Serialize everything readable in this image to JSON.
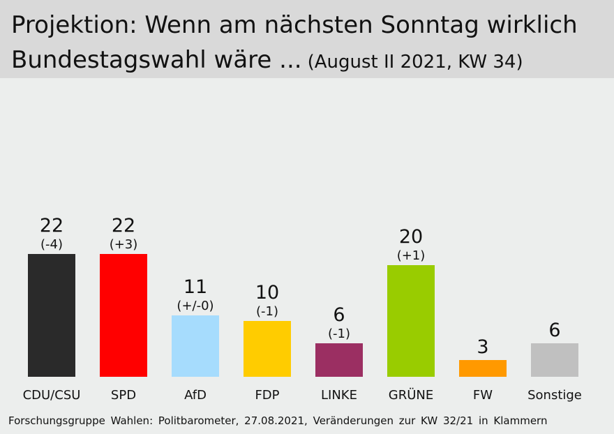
{
  "header": {
    "title_line1": "Projektion: Wenn am nächsten Sonntag wirklich",
    "title_line2": "Bundestagswahl wäre ...",
    "subtitle": "(August II 2021, KW 34)"
  },
  "source": "Forschungsgruppe Wahlen: Politbarometer, 27.08.2021, Veränderungen zur KW 32/21 in Klammern",
  "chart_data": {
    "type": "bar",
    "title": "Projektion: Wenn am nächsten Sonntag wirklich Bundestagswahl wäre ...",
    "subtitle": "(August II 2021, KW 34)",
    "categories": [
      "CDU/CSU",
      "SPD",
      "AfD",
      "FDP",
      "LINKE",
      "GRÜNE",
      "FW",
      "Sonstige"
    ],
    "values": [
      22,
      22,
      11,
      10,
      6,
      20,
      3,
      6
    ],
    "changes": [
      "(-4)",
      "(+3)",
      "(+/-0)",
      "(-1)",
      "(-1)",
      "(+1)",
      "",
      ""
    ],
    "colors": [
      "#2a2a2a",
      "#ff0000",
      "#a6dcfd",
      "#ffcc00",
      "#9b2f62",
      "#99cc00",
      "#ff9900",
      "#c0c0c0"
    ],
    "ylim": [
      0,
      22
    ],
    "grid": false,
    "legend": "none",
    "xlabel": "",
    "ylabel": ""
  }
}
